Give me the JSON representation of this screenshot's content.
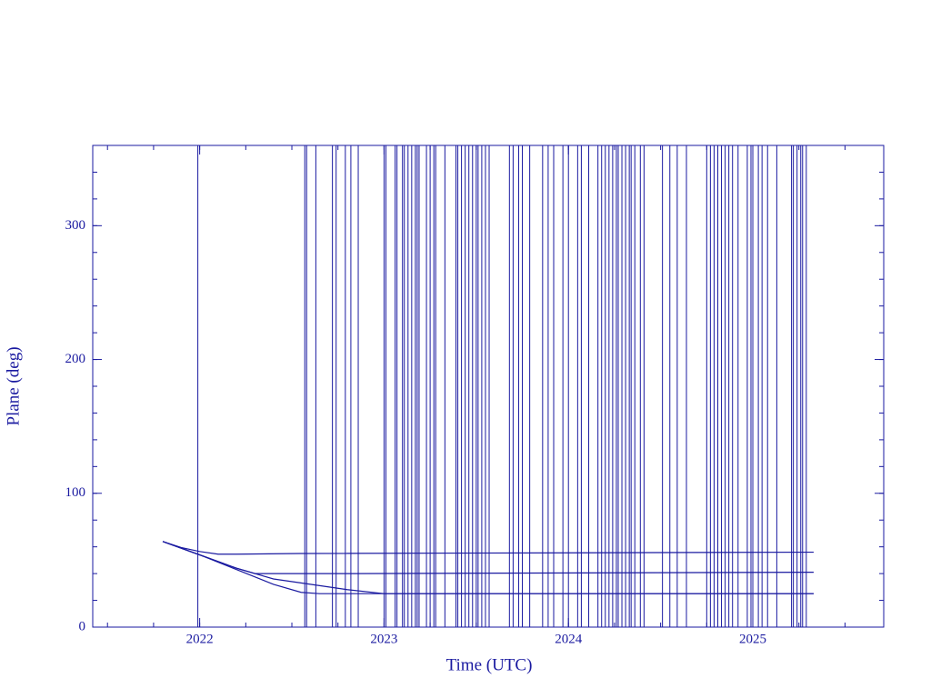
{
  "chart_data": {
    "type": "line",
    "x_label": "Time (UTC)",
    "y_label": "Plane (deg)",
    "color": "#1a1aa0",
    "xlim": [
      2021.42,
      2025.71
    ],
    "xticks": [
      2022,
      2023,
      2024,
      2025
    ],
    "ylim": [
      0,
      360
    ],
    "yticks": [
      0,
      100,
      200,
      300
    ],
    "series": [
      {
        "x": [
          2021.8,
          2021.9,
          2022.0,
          2022.1,
          2022.2,
          2022.55,
          2025.33
        ],
        "values": [
          64,
          59.5,
          56.5,
          54.5,
          54.5,
          55,
          56
        ]
      },
      {
        "x": [
          2021.8,
          2021.9,
          2022.0,
          2022.1,
          2022.2,
          2022.3,
          2022.4,
          2022.85,
          2025.33
        ],
        "values": [
          64,
          59,
          54,
          49,
          44,
          40,
          40,
          40,
          41
        ]
      },
      {
        "x": [
          2021.8,
          2022.0,
          2022.2,
          2022.4,
          2022.55,
          2022.65,
          2025.33
        ],
        "values": [
          64,
          54,
          43,
          32,
          26,
          25,
          25
        ]
      },
      {
        "x": [
          2021.8,
          2022.0,
          2022.2,
          2022.4,
          2022.6,
          2022.8,
          2023.0,
          2025.33
        ],
        "values": [
          64,
          54,
          44,
          36,
          32,
          28,
          25,
          25
        ]
      }
    ],
    "wrap_x": [
      2021.99,
      2022.57,
      2022.58,
      2022.63,
      2022.72,
      2022.74,
      2022.79,
      2022.82,
      2022.86,
      2023.0,
      2023.01,
      2023.06,
      2023.07,
      2023.1,
      2023.11,
      2023.13,
      2023.15,
      2023.17,
      2023.18,
      2023.19,
      2023.23,
      2023.25,
      2023.27,
      2023.28,
      2023.33,
      2023.39,
      2023.4,
      2023.42,
      2023.44,
      2023.46,
      2023.48,
      2023.5,
      2023.51,
      2023.53,
      2023.55,
      2023.57,
      2023.68,
      2023.7,
      2023.73,
      2023.75,
      2023.79,
      2023.86,
      2023.89,
      2023.92,
      2023.97,
      2024.0,
      2024.05,
      2024.07,
      2024.11,
      2024.16,
      2024.18,
      2024.2,
      2024.22,
      2024.24,
      2024.26,
      2024.27,
      2024.29,
      2024.31,
      2024.33,
      2024.34,
      2024.36,
      2024.39,
      2024.41,
      2024.51,
      2024.55,
      2024.59,
      2024.64,
      2024.75,
      2024.77,
      2024.79,
      2024.81,
      2024.83,
      2024.85,
      2024.87,
      2024.89,
      2024.92,
      2024.97,
      2024.99,
      2025.0,
      2025.03,
      2025.05,
      2025.08,
      2025.13,
      2025.21,
      2025.22,
      2025.24,
      2025.26,
      2025.27,
      2025.29
    ]
  }
}
